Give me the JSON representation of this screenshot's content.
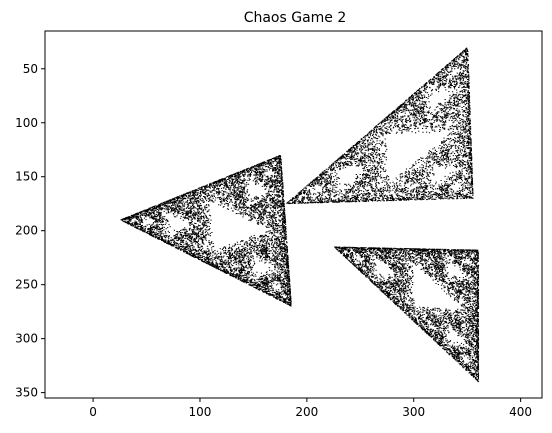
{
  "chart_data": {
    "type": "scatter",
    "title": "Chaos Game 2",
    "xlabel": "",
    "ylabel": "",
    "xlim": [
      -45,
      420
    ],
    "ylim": [
      355,
      15
    ],
    "y_inverted": true,
    "x_ticks": [
      0,
      100,
      200,
      300,
      400
    ],
    "y_ticks": [
      50,
      100,
      150,
      200,
      250,
      300,
      350
    ],
    "grid": false,
    "legend": "none",
    "marker_color": "#000000",
    "point_count_estimate": 20000,
    "regions": [
      {
        "shape": "triangle",
        "vertices": [
          [
            25,
            190
          ],
          [
            175,
            130
          ],
          [
            185,
            270
          ]
        ],
        "values": "filled dense point cloud"
      },
      {
        "shape": "triangle",
        "vertices": [
          [
            180,
            175
          ],
          [
            350,
            30
          ],
          [
            355,
            170
          ]
        ],
        "values": "filled dense point cloud"
      },
      {
        "shape": "triangle",
        "vertices": [
          [
            225,
            215
          ],
          [
            360,
            218
          ],
          [
            360,
            340
          ]
        ],
        "values": "filled dense point cloud"
      }
    ]
  }
}
